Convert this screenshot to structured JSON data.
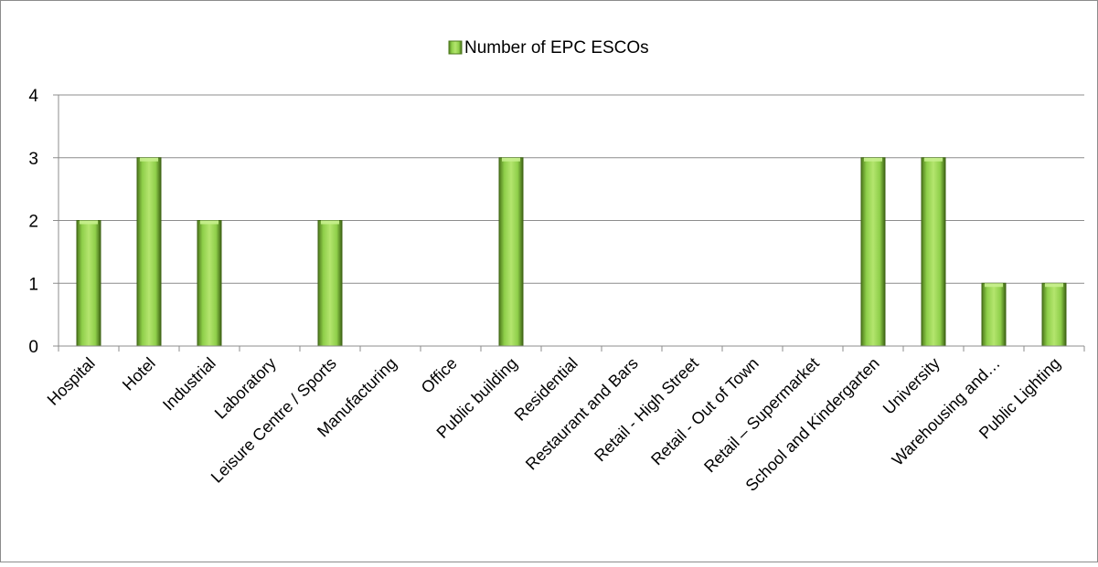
{
  "chart_data": {
    "type": "bar",
    "categories": [
      "Hospital",
      "Hotel",
      "Industrial",
      "Laboratory",
      "Leisure Centre / Sports",
      "Manufacturing",
      "Office",
      "Public building",
      "Residential",
      "Restaurant and Bars",
      "Retail - High Street",
      "Retail - Out of Town",
      "Retail – Supermarket",
      "School and Kindergarten",
      "University",
      "Warehousing and…",
      "Public Lighting"
    ],
    "series": [
      {
        "name": "Number of EPC ESCOs",
        "values": [
          2,
          3,
          2,
          0,
          2,
          0,
          0,
          3,
          0,
          0,
          0,
          0,
          0,
          3,
          3,
          1,
          1
        ],
        "color": "#8bc34a"
      }
    ],
    "ylim": [
      0,
      4
    ],
    "yticks": [
      "0",
      "1",
      "2",
      "3",
      "4"
    ],
    "legend_position": "top",
    "grid": true
  }
}
